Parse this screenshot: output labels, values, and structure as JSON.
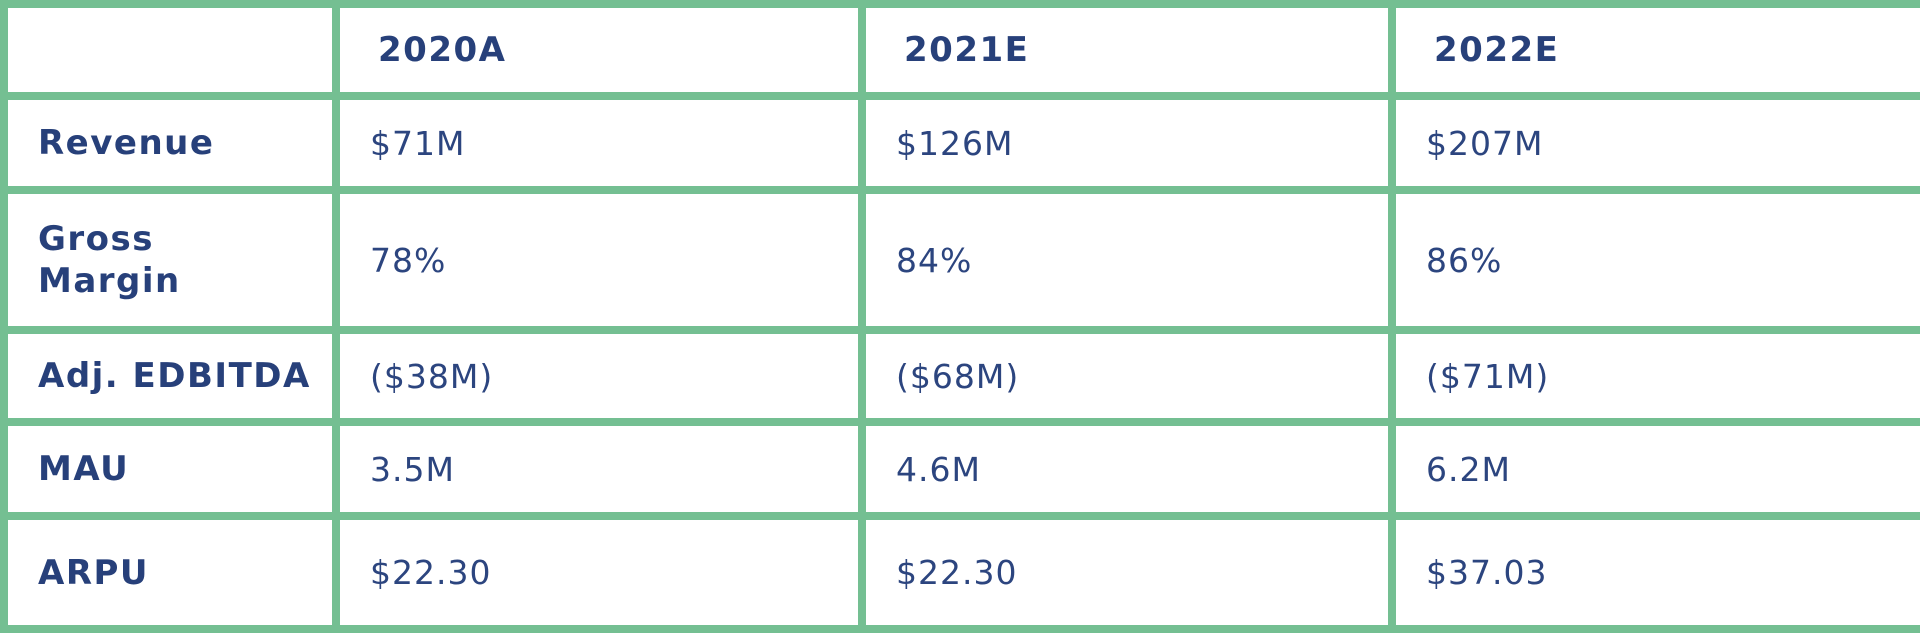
{
  "table": {
    "columns": [
      "",
      "2020A",
      "2021E",
      "2022E"
    ],
    "rows": [
      {
        "label": "Revenue",
        "values": [
          "$71M",
          "$126M",
          "$207M"
        ]
      },
      {
        "label": "Gross Margin",
        "values": [
          "78%",
          "84%",
          "86%"
        ]
      },
      {
        "label": "Adj. EDBITDA",
        "values": [
          "($38M)",
          "($68M)",
          "($71M)"
        ]
      },
      {
        "label": "MAU",
        "values": [
          "3.5M",
          "4.6M",
          "6.2M"
        ]
      },
      {
        "label": "ARPU",
        "values": [
          "$22.30",
          "$22.30",
          "$37.03"
        ]
      }
    ]
  },
  "colors": {
    "border": "#74bf92",
    "text": "#27407a",
    "background": "#ffffff"
  }
}
